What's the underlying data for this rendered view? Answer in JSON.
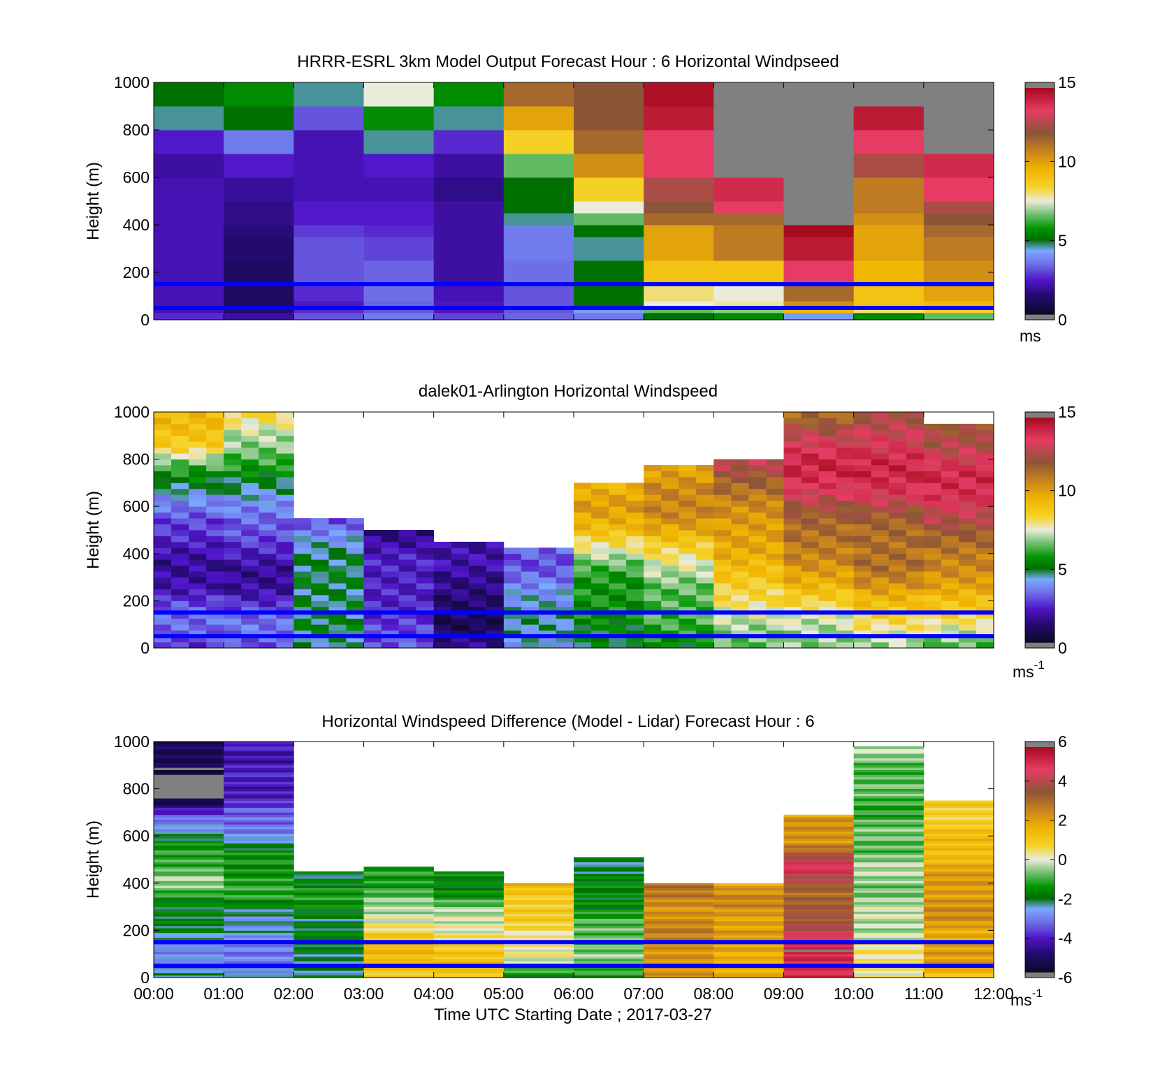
{
  "figure": {
    "xlabel": "Time UTC  Starting Date ; 2017-03-27",
    "x_ticks": [
      "00:00",
      "01:00",
      "02:00",
      "03:00",
      "04:00",
      "05:00",
      "06:00",
      "07:00",
      "08:00",
      "09:00",
      "10:00",
      "11:00",
      "12:00"
    ]
  },
  "chart_data": [
    {
      "type": "heatmap",
      "title": "HRRR-ESRL 3km Model Output   Forecast Hour : 6 Horizontal Windpseed",
      "ylabel": "Height (m)",
      "xlim": [
        0,
        12
      ],
      "ylim": [
        0,
        1000
      ],
      "y_ticks": [
        "0",
        "200",
        "400",
        "600",
        "800",
        "1000"
      ],
      "colorbar": {
        "ticks": [
          "0",
          "5",
          "10",
          "15"
        ],
        "range": [
          0,
          15
        ],
        "unit": "ms"
      },
      "reference_lines_m": [
        150,
        50
      ],
      "reference_line_color": "#0000ff",
      "no_data_color": "#808080",
      "hours": [
        0,
        1,
        2,
        3,
        4,
        5,
        6,
        7,
        8,
        9,
        10,
        11
      ],
      "level_bounds_m": [
        0,
        30,
        50,
        80,
        150,
        200,
        250,
        350,
        400,
        450,
        500,
        600,
        700,
        800,
        900,
        1000
      ],
      "values": [
        [
          2.5,
          1.8,
          3.0,
          3.5,
          2.8,
          3.2,
          3.5,
          5.0,
          5.5,
          4.0,
          5.5,
          6.5
        ],
        [
          2.0,
          1.2,
          2.5,
          3.0,
          2.2,
          3.0,
          4.0,
          6.5,
          6.8,
          9.5,
          8.0,
          8.5
        ],
        [
          2.0,
          1.0,
          2.3,
          3.2,
          2.2,
          3.0,
          5.0,
          7.5,
          7.8,
          10.5,
          9.0,
          9.5
        ],
        [
          2.0,
          1.0,
          2.5,
          3.3,
          2.0,
          3.0,
          5.0,
          8.0,
          7.5,
          11.5,
          9.0,
          10.0
        ],
        [
          2.0,
          1.0,
          3.0,
          3.2,
          1.8,
          3.3,
          5.0,
          9.0,
          9.0,
          13.5,
          9.5,
          10.5
        ],
        [
          2.0,
          1.0,
          3.0,
          3.2,
          1.8,
          3.3,
          5.0,
          9.0,
          9.0,
          13.5,
          9.5,
          10.5
        ],
        [
          2.0,
          1.2,
          3.0,
          2.8,
          1.8,
          3.5,
          4.5,
          10.0,
          11.0,
          14.5,
          10.0,
          11.0
        ],
        [
          2.0,
          1.3,
          2.7,
          2.5,
          1.8,
          3.5,
          5.0,
          10.0,
          11.0,
          15.0,
          10.0,
          11.5
        ],
        [
          2.0,
          1.5,
          2.3,
          2.3,
          1.8,
          4.5,
          6.5,
          11.5,
          11.5,
          15.5,
          10.5,
          12.0
        ],
        [
          2.0,
          1.5,
          2.3,
          2.3,
          1.8,
          5.0,
          7.5,
          12.0,
          13.5,
          15.5,
          11.0,
          12.5
        ],
        [
          2.0,
          1.7,
          2.0,
          2.0,
          1.5,
          5.0,
          8.5,
          12.5,
          14.0,
          15.5,
          11.0,
          13.5
        ],
        [
          1.8,
          2.3,
          2.0,
          2.3,
          1.8,
          6.5,
          10.5,
          13.5,
          15.5,
          15.5,
          12.5,
          14.0
        ],
        [
          2.3,
          3.5,
          2.0,
          4.5,
          2.5,
          8.5,
          11.5,
          13.5,
          15.5,
          15.5,
          13.5,
          15.5
        ],
        [
          4.5,
          5.0,
          3.0,
          5.5,
          4.5,
          10.0,
          12.0,
          14.5,
          15.5,
          15.5,
          14.5,
          15.5
        ],
        [
          5.0,
          5.5,
          4.5,
          7.5,
          5.5,
          11.5,
          12.0,
          14.8,
          15.5,
          15.5,
          15.5,
          15.5
        ]
      ]
    },
    {
      "type": "heatmap",
      "title": "dalek01-Arlington  Horizontal Windspeed",
      "ylabel": "Height (m)",
      "xlim": [
        0,
        12
      ],
      "ylim": [
        0,
        1000
      ],
      "y_ticks": [
        "0",
        "200",
        "400",
        "600",
        "800",
        "1000"
      ],
      "colorbar": {
        "ticks": [
          "0",
          "5",
          "10",
          "15"
        ],
        "range": [
          0,
          15
        ],
        "unit": "ms",
        "unit_exponent": "-1"
      },
      "reference_lines_m": [
        150,
        50
      ],
      "reference_line_color": "#0000ff",
      "columns_per_hour": 4,
      "bin_height_m": 25,
      "profiles": [
        {
          "hour": 0,
          "top_m": 1000,
          "v": [
            2.5,
            3.0,
            3.0,
            2.2,
            2.0,
            2.0,
            2.3,
            2.5,
            3.5,
            5.0,
            6.5,
            8.5,
            9.0,
            9.0
          ]
        },
        {
          "hour": 1,
          "top_m": 1000,
          "v": [
            2.5,
            3.2,
            3.0,
            2.2,
            1.8,
            2.0,
            2.5,
            3.0,
            4.0,
            5.0,
            6.0,
            6.5,
            7.0,
            8.5
          ]
        },
        {
          "hour": 2,
          "top_m": 550,
          "v": [
            4.0,
            5.0,
            5.0,
            5.0,
            4.5,
            3.8,
            3.0
          ]
        },
        {
          "hour": 3,
          "top_m": 500,
          "v": [
            3.0,
            3.0,
            2.5,
            2.0,
            2.0,
            1.5
          ]
        },
        {
          "hour": 4,
          "top_m": 470,
          "v": [
            2.0,
            1.0,
            1.0,
            1.2,
            2.0,
            2.0
          ]
        },
        {
          "hour": 5,
          "top_m": 440,
          "v": [
            4.5,
            4.5,
            4.0,
            3.5,
            3.0,
            3.8
          ]
        },
        {
          "hour": 6,
          "top_m": 700,
          "v": [
            5.0,
            5.0,
            5.5,
            6.0,
            7.5,
            9.0,
            10.0,
            9.5
          ]
        },
        {
          "hour": 7,
          "top_m": 780,
          "v": [
            5.0,
            6.0,
            6.5,
            7.5,
            8.5,
            10.5,
            11.0,
            10.0
          ]
        },
        {
          "hour": 8,
          "top_m": 820,
          "v": [
            6.0,
            7.0,
            8.5,
            9.0,
            9.5,
            10.0,
            11.0,
            12.0,
            13.0
          ]
        },
        {
          "hour": 9,
          "top_m": 1000,
          "v": [
            6.5,
            7.5,
            9.0,
            10.0,
            11.0,
            12.0,
            13.5,
            14.0,
            13.0,
            11.5
          ]
        },
        {
          "hour": 10,
          "top_m": 1000,
          "v": [
            7.0,
            8.5,
            9.5,
            11.0,
            11.5,
            12.0,
            13.5,
            14.0,
            13.5,
            12.5
          ]
        },
        {
          "hour": 11,
          "top_m": 960,
          "v": [
            6.5,
            8.0,
            9.0,
            10.5,
            11.5,
            12.5,
            13.5,
            14.0,
            13.0,
            12.0
          ]
        }
      ]
    },
    {
      "type": "heatmap",
      "title": "Horizontal Windspeed Difference (Model - Lidar) Forecast Hour : 6",
      "xlabel": "Time UTC  Starting Date ; 2017-03-27",
      "ylabel": "Height (m)",
      "xlim": [
        0,
        12
      ],
      "ylim": [
        0,
        1000
      ],
      "y_ticks": [
        "0",
        "200",
        "400",
        "600",
        "800",
        "1000"
      ],
      "colorbar": {
        "ticks": [
          "-6",
          "-4",
          "-2",
          "0",
          "2",
          "4",
          "6"
        ],
        "range": [
          -6,
          6
        ],
        "unit": "ms",
        "unit_exponent": "-1"
      },
      "reference_lines_m": [
        150,
        50
      ],
      "reference_line_color": "#0000ff",
      "bin_height_m": 10,
      "profiles": [
        {
          "hour": 0,
          "top_m": 1000,
          "v": [
            -2.5,
            -3.0,
            -2.5,
            -2.0,
            -1.5,
            -0.5,
            -1.0,
            -2.0,
            -3.0,
            -6.0,
            -6.5,
            -5.5,
            -5.0
          ]
        },
        {
          "hour": 1,
          "top_m": 1000,
          "v": [
            -3.0,
            -3.0,
            -3.0,
            -2.5,
            -1.5,
            -1.2,
            -1.5,
            -2.5,
            -3.5,
            -4.0,
            -4.3,
            -4.5,
            -3.8
          ]
        },
        {
          "hour": 2,
          "top_m": 455,
          "v": [
            -2.5,
            -2.0,
            -2.0,
            -1.8,
            -1.5,
            -2.0
          ]
        },
        {
          "hour": 3,
          "top_m": 470,
          "v": [
            1.0,
            1.5,
            1.0,
            -0.5,
            -1.0,
            -1.5
          ]
        },
        {
          "hour": 4,
          "top_m": 455,
          "v": [
            1.5,
            1.0,
            0.5,
            -0.5,
            -1.5,
            -2.0
          ]
        },
        {
          "hour": 5,
          "top_m": 400,
          "v": [
            -1.5,
            0.0,
            0.5,
            1.0,
            1.5
          ]
        },
        {
          "hour": 6,
          "top_m": 510,
          "v": [
            -1.5,
            -0.5,
            -1.0,
            -1.5,
            -2.0,
            -2.0
          ]
        },
        {
          "hour": 7,
          "top_m": 400,
          "v": [
            2.0,
            2.5,
            2.5,
            2.5,
            2.8
          ]
        },
        {
          "hour": 8,
          "top_m": 400,
          "v": [
            1.5,
            2.0,
            2.0,
            2.5,
            2.0
          ]
        },
        {
          "hour": 9,
          "top_m": 690,
          "v": [
            5.0,
            5.5,
            4.0,
            3.0,
            5.0,
            2.5,
            2.0
          ]
        },
        {
          "hour": 10,
          "top_m": 980,
          "v": [
            0.5,
            0.0,
            -0.5,
            -0.5,
            -1.0,
            -1.0,
            -0.5
          ]
        },
        {
          "hour": 11,
          "top_m": 750,
          "v": [
            1.5,
            2.0,
            2.0,
            2.5,
            2.0,
            1.5,
            1.0,
            1.0
          ]
        }
      ]
    }
  ]
}
